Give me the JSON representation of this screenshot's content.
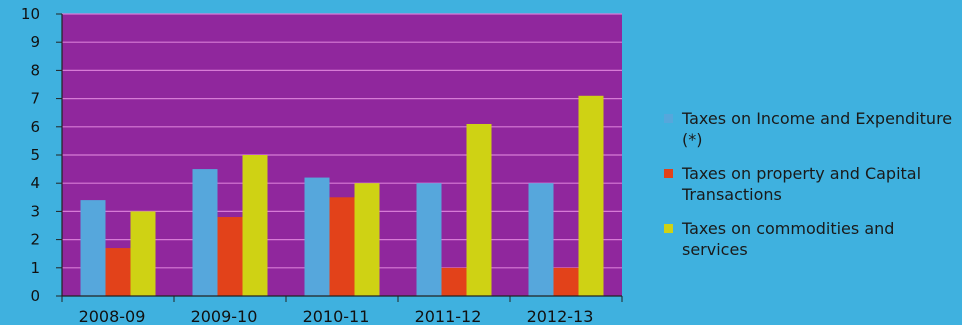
{
  "chart_data": {
    "type": "bar",
    "categories": [
      "2008-09",
      "2009-10",
      "2010-11",
      "2011-12",
      "2012-13"
    ],
    "series": [
      {
        "name": "Taxes on Income and Expenditure (*)",
        "values": [
          3.4,
          4.5,
          4.2,
          4.0,
          4.0
        ],
        "color": "#56a7dc"
      },
      {
        "name": "Taxes on property and Capital Transactions",
        "values": [
          1.7,
          2.8,
          3.5,
          1.0,
          1.0
        ],
        "color": "#e2421a"
      },
      {
        "name": "Taxes on commodities and services",
        "values": [
          3.0,
          5.0,
          4.0,
          6.1,
          7.1
        ],
        "color": "#cfd214"
      }
    ],
    "yticks": [
      "0",
      "1",
      "2",
      "3",
      "4",
      "5",
      "6",
      "7",
      "8",
      "9",
      "10"
    ],
    "ylim": [
      0,
      10
    ],
    "grid": true,
    "legend_position": "right",
    "plot_background": "#90279d",
    "grid_color": "#d77bd6"
  }
}
